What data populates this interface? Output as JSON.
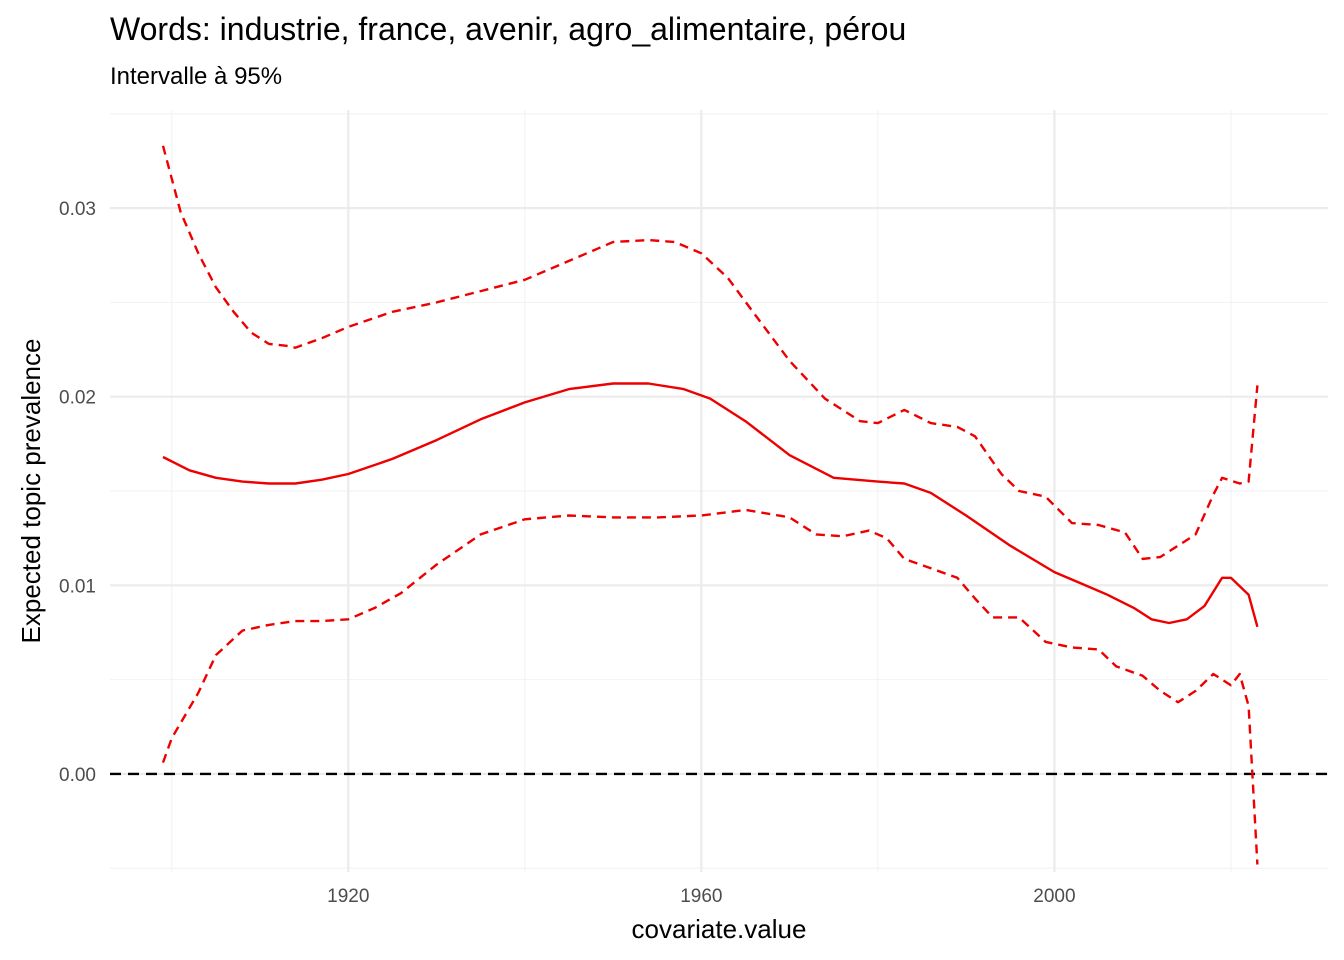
{
  "chart_data": {
    "type": "line",
    "title": "Words: industrie, france, avenir, agro_alimentaire, pérou",
    "subtitle": "Intervalle à 95%",
    "xlabel": "covariate.value",
    "ylabel": "Expected topic prevalence",
    "xlim": [
      1893,
      2031
    ],
    "ylim": [
      -0.0052,
      0.0352
    ],
    "x_ticks": [
      1920,
      1960,
      2000
    ],
    "x_tick_labels": [
      "1920",
      "1960",
      "2000"
    ],
    "y_ticks": [
      0.0,
      0.01,
      0.02,
      0.03
    ],
    "y_tick_labels": [
      "0.00",
      "0.01",
      "0.02",
      "0.03"
    ],
    "grid": true,
    "reference_line": {
      "y": 0.0,
      "color": "#000000",
      "style": "dashed"
    },
    "series": [
      {
        "style": "solid",
        "color": "#ee0000",
        "x": [
          1899,
          1902,
          1905,
          1908,
          1911,
          1914,
          1917,
          1920,
          1925,
          1930,
          1935,
          1940,
          1945,
          1950,
          1954,
          1958,
          1961,
          1965,
          1970,
          1975,
          1980,
          1983,
          1986,
          1990,
          1995,
          2000,
          2003,
          2006,
          2009,
          2011,
          2013,
          2015,
          2017,
          2019,
          2020,
          2022,
          2023
        ],
        "values": [
          0.0168,
          0.0161,
          0.0157,
          0.0155,
          0.0154,
          0.0154,
          0.0156,
          0.0159,
          0.0167,
          0.0177,
          0.0188,
          0.0197,
          0.0204,
          0.0207,
          0.0207,
          0.0204,
          0.0199,
          0.0187,
          0.0169,
          0.0157,
          0.0155,
          0.0154,
          0.0149,
          0.0137,
          0.0121,
          0.0107,
          0.0101,
          0.0095,
          0.0088,
          0.0082,
          0.008,
          0.0082,
          0.0089,
          0.0104,
          0.0104,
          0.0095,
          0.0078
        ]
      },
      {
        "style": "dashed",
        "color": "#ee0000",
        "x": [
          1899,
          1901,
          1903,
          1905,
          1907,
          1909,
          1911,
          1913,
          1914,
          1917,
          1920,
          1925,
          1930,
          1935,
          1940,
          1945,
          1950,
          1954,
          1957,
          1960,
          1963,
          1966,
          1970,
          1974,
          1978,
          1980,
          1983,
          1986,
          1989,
          1991,
          1994,
          1996,
          1999,
          2002,
          2005,
          2008,
          2010,
          2012,
          2014,
          2016,
          2018,
          2019,
          2021,
          2022,
          2023
        ],
        "values": [
          0.0333,
          0.0298,
          0.0276,
          0.0258,
          0.0245,
          0.0234,
          0.0228,
          0.0227,
          0.0226,
          0.0231,
          0.0237,
          0.0245,
          0.025,
          0.0256,
          0.0262,
          0.0272,
          0.0282,
          0.0283,
          0.0282,
          0.0276,
          0.0263,
          0.0244,
          0.0219,
          0.0199,
          0.0187,
          0.0186,
          0.0193,
          0.0186,
          0.0184,
          0.0179,
          0.0159,
          0.015,
          0.0147,
          0.0133,
          0.0132,
          0.0128,
          0.0114,
          0.0115,
          0.0121,
          0.0127,
          0.0148,
          0.0157,
          0.0154,
          0.0155,
          0.0206
        ]
      },
      {
        "style": "dashed",
        "color": "#ee0000",
        "x": [
          1899,
          1900,
          1903,
          1905,
          1908,
          1911,
          1914,
          1917,
          1920,
          1923,
          1926,
          1930,
          1935,
          1940,
          1945,
          1950,
          1955,
          1960,
          1965,
          1970,
          1973,
          1976,
          1979,
          1981,
          1983,
          1986,
          1989,
          1991,
          1993,
          1996,
          1999,
          2002,
          2005,
          2007,
          2010,
          2012,
          2014,
          2016,
          2018,
          2020,
          2021,
          2022,
          2023
        ],
        "values": [
          0.0006,
          0.0019,
          0.0043,
          0.0063,
          0.0076,
          0.0079,
          0.0081,
          0.0081,
          0.0082,
          0.0088,
          0.0096,
          0.0111,
          0.0127,
          0.0135,
          0.0137,
          0.0136,
          0.0136,
          0.0137,
          0.014,
          0.0136,
          0.0127,
          0.0126,
          0.0129,
          0.0125,
          0.0114,
          0.0109,
          0.0104,
          0.0093,
          0.0083,
          0.0083,
          0.007,
          0.0067,
          0.0066,
          0.0057,
          0.0052,
          0.0044,
          0.0038,
          0.0044,
          0.0053,
          0.0047,
          0.0053,
          0.0036,
          -0.0048
        ]
      }
    ]
  }
}
